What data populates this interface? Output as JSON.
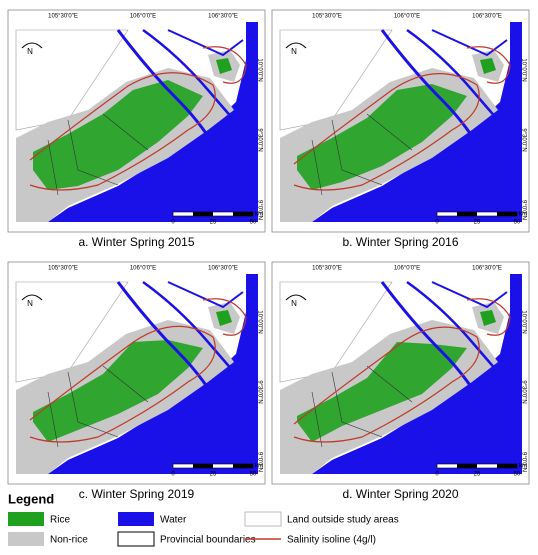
{
  "panels": [
    {
      "caption": "a. Winter Spring 2015"
    },
    {
      "caption": "b. Winter Spring 2016"
    },
    {
      "caption": "c. Winter Spring 2019"
    },
    {
      "caption": "d. Winter Spring 2020"
    }
  ],
  "graticule": {
    "lon": [
      "105°30'0\"E",
      "106°0'0\"E",
      "106°30'0\"E"
    ],
    "lat": [
      "10°0'0\"N",
      "9°30'0\"N",
      "9°0'0\"N"
    ]
  },
  "scale_bar": {
    "ticks": [
      0,
      25,
      50
    ],
    "unit": "km"
  },
  "north": "N",
  "legend": {
    "title": "Legend",
    "items": [
      {
        "label": "Rice",
        "color": "#1fa11f"
      },
      {
        "label": "Non-rice",
        "color": "#c8c8c8"
      },
      {
        "label": "Water",
        "color": "#1a10e8"
      },
      {
        "label": "Provincial boundaries",
        "color": "#000000"
      },
      {
        "label": "Land outside study areas",
        "color": "#ffffff"
      },
      {
        "label": "Salinity isoline (4g/l)",
        "color": "#c0392b"
      }
    ]
  }
}
